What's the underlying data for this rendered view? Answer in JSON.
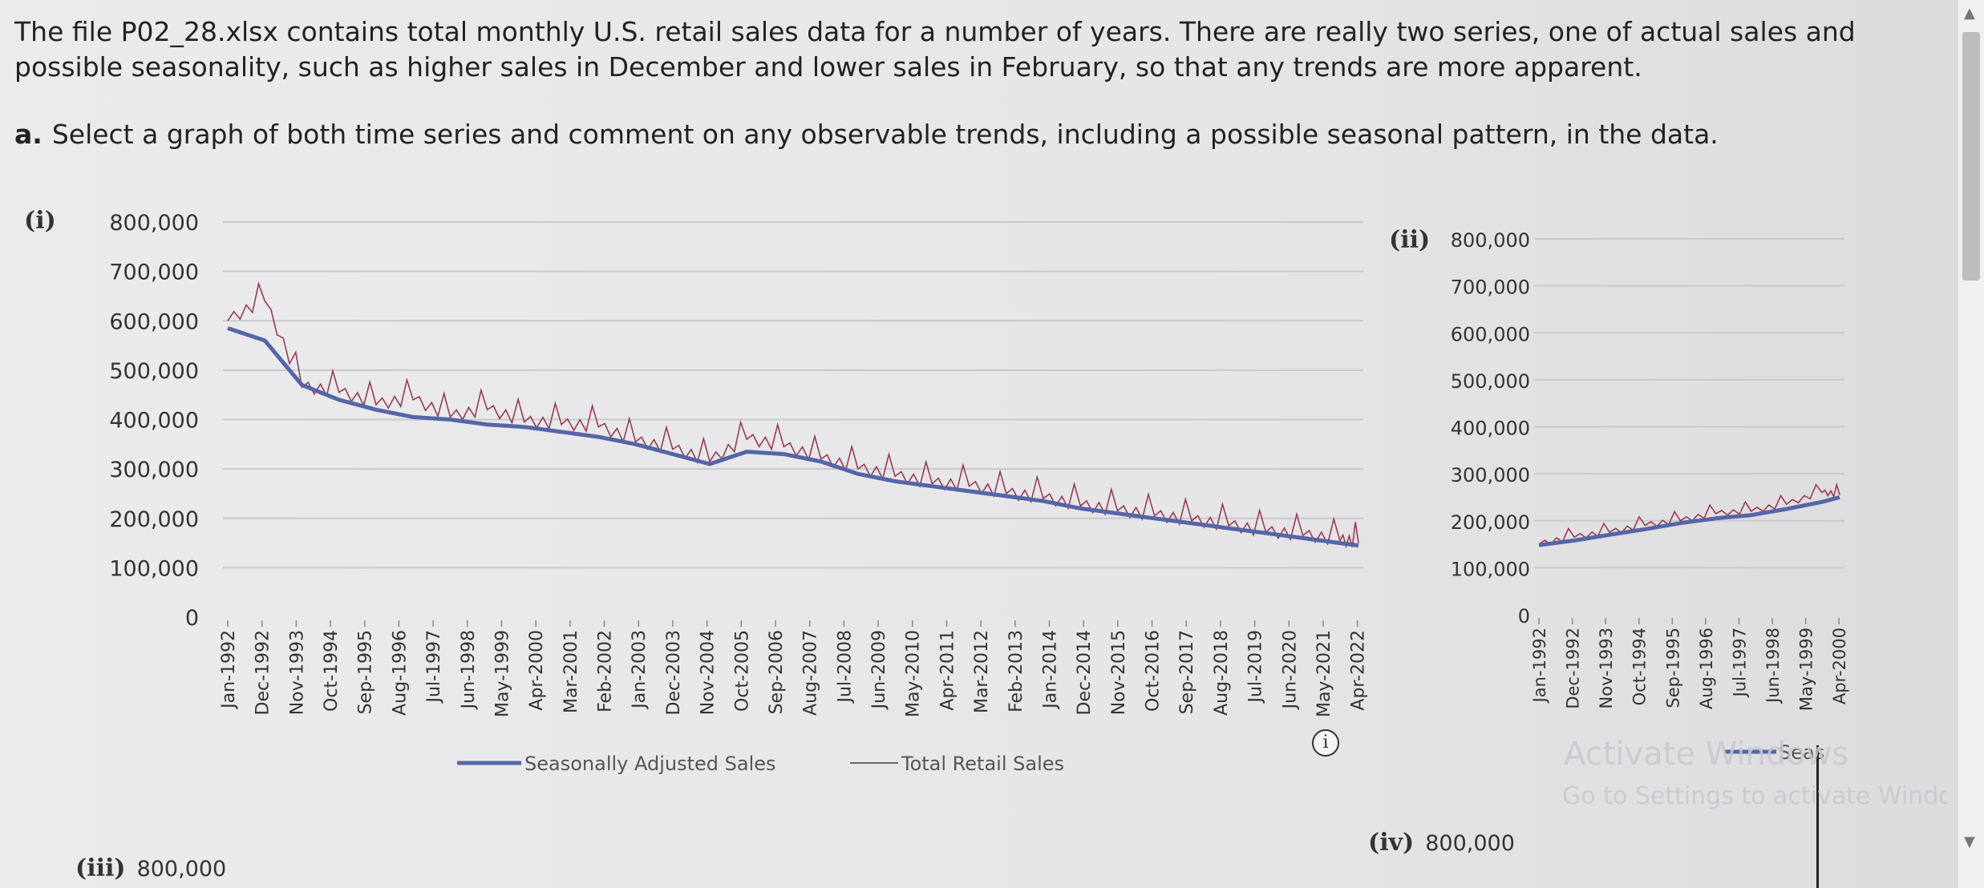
{
  "question": {
    "intro": "The file P02_28.xlsx contains total monthly U.S. retail sales data for a number of years. There are really two series, one of actual sales and possible seasonality, such as higher sales in December and lower sales in February, so that any trends are more apparent.",
    "part_letter": "a.",
    "part_text": "Select a graph of both time series and comment on any observable trends, including a possible seasonal pattern, in the data."
  },
  "panels": {
    "i": "(i)",
    "ii": "(ii)",
    "iii": "(iii)",
    "iv": "(iv)",
    "iii_top_tick": "800,000",
    "iv_top_tick": "800,000"
  },
  "chart_data": [
    {
      "type": "line",
      "panel": "(i)",
      "title": "",
      "xlabel": "",
      "ylabel": "",
      "ylim": [
        0,
        800000
      ],
      "y_ticks": [
        "800,000",
        "700,000",
        "600,000",
        "500,000",
        "400,000",
        "300,000",
        "200,000",
        "100,000",
        "0"
      ],
      "x_tick_labels": [
        "Jan-1992",
        "Dec-1992",
        "Nov-1993",
        "Oct-1994",
        "Sep-1995",
        "Aug-1996",
        "Jul-1997",
        "Jun-1998",
        "May-1999",
        "Apr-2000",
        "Mar-2001",
        "Feb-2002",
        "Jan-2003",
        "Dec-2003",
        "Nov-2004",
        "Oct-2005",
        "Sep-2006",
        "Aug-2007",
        "Jul-2008",
        "Jun-2009",
        "May-2010",
        "Apr-2011",
        "Mar-2012",
        "Feb-2013",
        "Jan-2014",
        "Dec-2014",
        "Nov-2015",
        "Oct-2016",
        "Sep-2017",
        "Aug-2018",
        "Jul-2019",
        "Jun-2020",
        "May-2021",
        "Apr-2022"
      ],
      "grid": true,
      "legend": "bottom",
      "colors": {
        "adjusted": "#5465a8",
        "total": "#9a3a52"
      },
      "series": [
        {
          "name": "Seasonally Adjusted Sales",
          "x": [
            "Jan-1992",
            "Jan-1993",
            "Jan-1994",
            "Jan-1995",
            "Jan-1996",
            "Jan-1997",
            "Jan-1998",
            "Jan-1999",
            "Jan-2000",
            "Jan-2001",
            "Jan-2002",
            "Jan-2003",
            "Jan-2004",
            "Jan-2005",
            "Jan-2006",
            "Jan-2007",
            "Jan-2008",
            "Jan-2009",
            "Jan-2010",
            "Jan-2011",
            "Jan-2012",
            "Jan-2013",
            "Jan-2014",
            "Jan-2015",
            "Jan-2016",
            "Jan-2017",
            "Jan-2018",
            "Jan-2019",
            "Jan-2020",
            "Jan-2021",
            "Jan-2022",
            "Jul-2022"
          ],
          "values": [
            585000,
            560000,
            470000,
            440000,
            420000,
            405000,
            400000,
            390000,
            385000,
            375000,
            365000,
            350000,
            330000,
            310000,
            335000,
            330000,
            315000,
            290000,
            275000,
            265000,
            255000,
            245000,
            235000,
            220000,
            210000,
            200000,
            190000,
            180000,
            170000,
            160000,
            150000,
            145000
          ]
        },
        {
          "name": "Total Retail Sales",
          "x": [
            "Jan-1992",
            "Jan-1993",
            "Jan-1994",
            "Jan-1995",
            "Jan-1996",
            "Jan-1997",
            "Jan-1998",
            "Jan-1999",
            "Jan-2000",
            "Jan-2001",
            "Jan-2002",
            "Jan-2003",
            "Jan-2004",
            "Jan-2005",
            "Jan-2006",
            "Jan-2007",
            "Jan-2008",
            "Jan-2009",
            "Jan-2010",
            "Jan-2011",
            "Jan-2012",
            "Jan-2013",
            "Jan-2014",
            "Jan-2015",
            "Jan-2016",
            "Jan-2017",
            "Jan-2018",
            "Jan-2019",
            "Jan-2020",
            "Jan-2021",
            "Jan-2022",
            "Jul-2022"
          ],
          "values": [
            600000,
            640000,
            465000,
            455000,
            430000,
            440000,
            405000,
            420000,
            395000,
            390000,
            385000,
            355000,
            340000,
            315000,
            360000,
            345000,
            320000,
            300000,
            285000,
            270000,
            265000,
            250000,
            240000,
            225000,
            215000,
            205000,
            195000,
            185000,
            172000,
            165000,
            155000,
            150000
          ]
        }
      ]
    },
    {
      "type": "line",
      "panel": "(ii)",
      "title": "",
      "ylim": [
        0,
        800000
      ],
      "y_ticks": [
        "800,000",
        "700,000",
        "600,000",
        "500,000",
        "400,000",
        "300,000",
        "200,000",
        "100,000",
        "0"
      ],
      "x_tick_labels": [
        "Jan-1992",
        "Dec-1992",
        "Nov-1993",
        "Oct-1994",
        "Sep-1995",
        "Aug-1996",
        "Jul-1997",
        "Jun-1998",
        "May-1999",
        "Apr-2000"
      ],
      "grid": true,
      "legend_text": "Seas",
      "series": [
        {
          "name": "Seasonally Adjusted Sales",
          "x": [
            "Jan-1992",
            "Jan-1993",
            "Jan-1994",
            "Jan-1995",
            "Jan-1996",
            "Jan-1997",
            "Jan-1998",
            "Jan-1999",
            "Jan-2000",
            "Jul-2000"
          ],
          "values": [
            148000,
            158000,
            170000,
            182000,
            195000,
            205000,
            212000,
            225000,
            240000,
            250000
          ]
        },
        {
          "name": "Total Retail Sales",
          "x": [
            "Jan-1992",
            "Jan-1993",
            "Jan-1994",
            "Jan-1995",
            "Jan-1996",
            "Jan-1997",
            "Jan-1998",
            "Jan-1999",
            "Jan-2000",
            "Jul-2000"
          ],
          "values": [
            150000,
            165000,
            175000,
            190000,
            200000,
            215000,
            220000,
            235000,
            260000,
            255000
          ]
        }
      ]
    }
  ],
  "watermark": {
    "line1": "Activate Windows",
    "line2": "Go to Settings to activate Windows."
  },
  "icons": {
    "info": "info-icon"
  }
}
